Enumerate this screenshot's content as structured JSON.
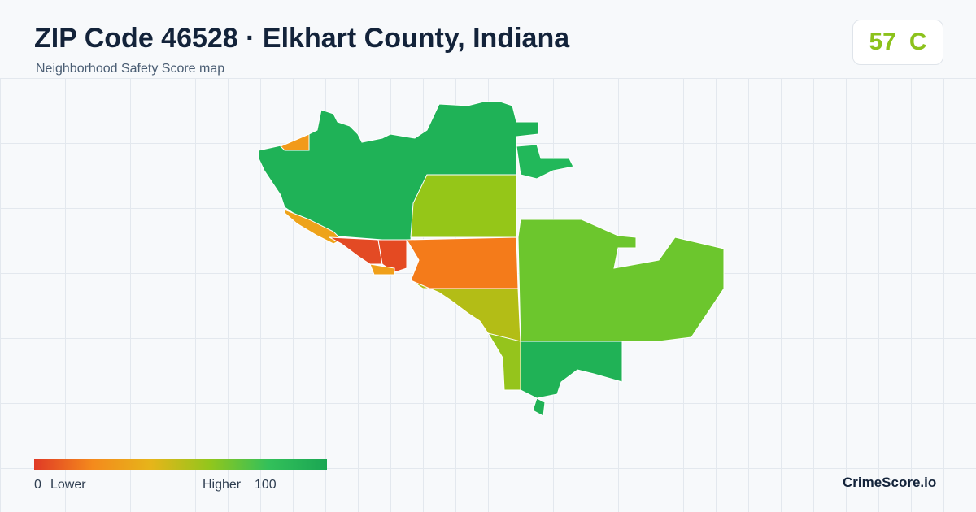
{
  "header": {
    "title": "ZIP Code 46528 · Elkhart County, Indiana",
    "subtitle": "Neighborhood Safety Score map"
  },
  "score": {
    "value": 57,
    "grade": "C"
  },
  "legend": {
    "min": 0,
    "min_label": "Lower",
    "max_label": "Higher",
    "max": 100
  },
  "brand": "CrimeScore.io"
}
